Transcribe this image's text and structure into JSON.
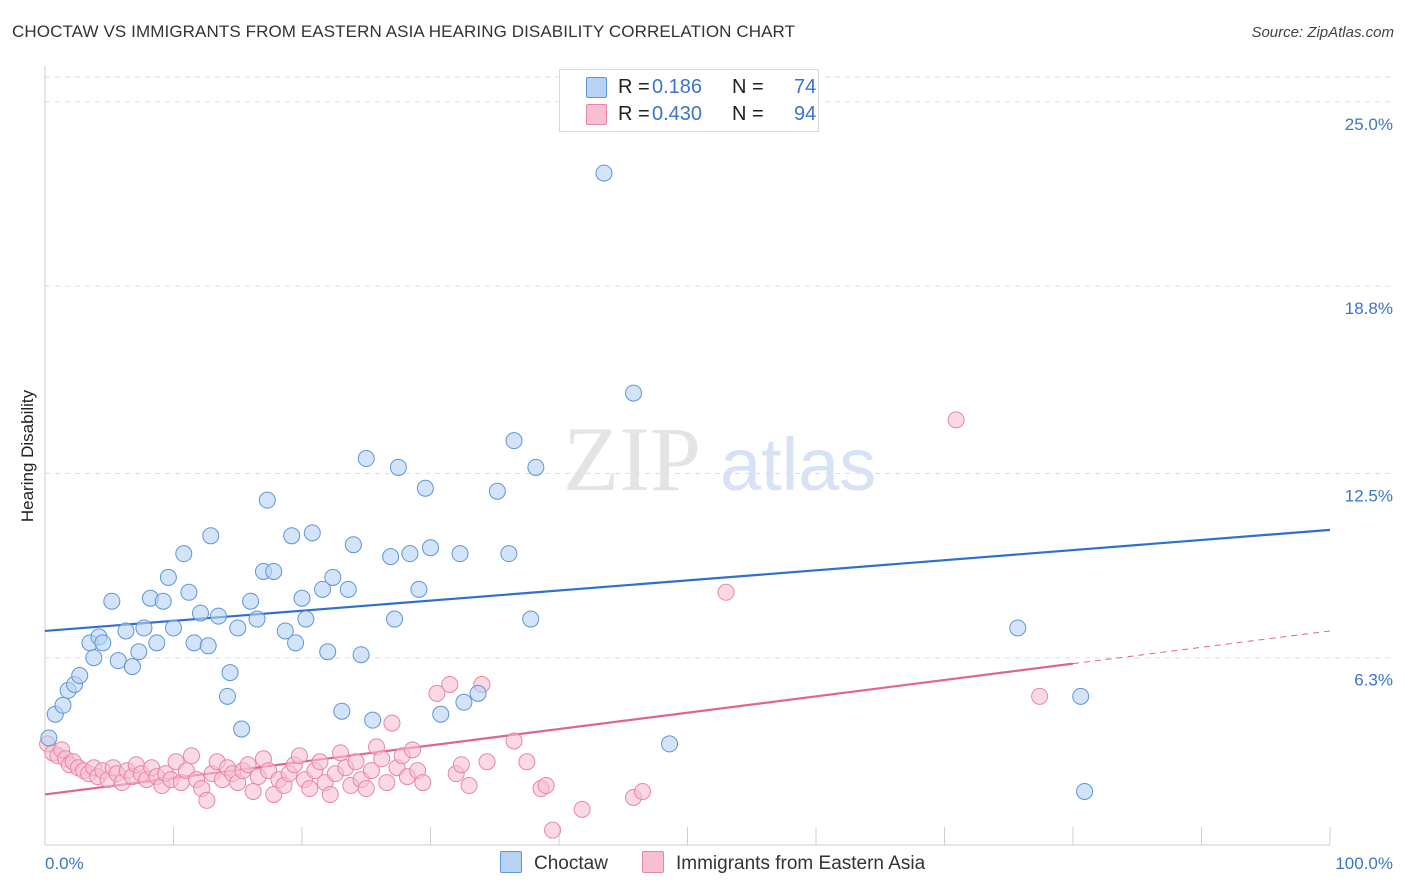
{
  "header": {
    "title": "CHOCTAW VS IMMIGRANTS FROM EASTERN ASIA HEARING DISABILITY CORRELATION CHART",
    "source": "Source: ZipAtlas.com"
  },
  "watermark": {
    "zip": "ZIP",
    "atlas": "atlas"
  },
  "legend": {
    "items": [
      {
        "r_label": "R =",
        "r_value": "0.186",
        "n_label": "N =",
        "n_value": "74"
      },
      {
        "r_label": "R =",
        "r_value": "0.430",
        "n_label": "N =",
        "n_value": "94"
      }
    ],
    "bottom": [
      "Choctaw",
      "Immigrants from Eastern Asia"
    ]
  },
  "colors": {
    "choctaw_fill": "#b7d2f3",
    "choctaw_stroke": "#5d95d9",
    "choctaw_line": "#2f6fcf",
    "immigrants_fill": "#f7bfd1",
    "immigrants_stroke": "#e985a6",
    "immigrants_line": "#e0648f",
    "axis_text": "#3a74cc",
    "grid": "#dddddd"
  },
  "chart_data": {
    "type": "scatter",
    "title": "CHOCTAW VS IMMIGRANTS FROM EASTERN ASIA HEARING DISABILITY CORRELATION CHART",
    "xlabel": "",
    "ylabel": "Hearing Disability",
    "xlim": [
      0,
      100
    ],
    "ylim": [
      0,
      25.9
    ],
    "x_tick_labels": [
      "0.0%",
      "100.0%"
    ],
    "y_ticks": [
      {
        "value": 6.3,
        "label": "6.3%"
      },
      {
        "value": 12.5,
        "label": "12.5%"
      },
      {
        "value": 18.8,
        "label": "18.8%"
      },
      {
        "value": 25.0,
        "label": "25.0%"
      }
    ],
    "series": [
      {
        "name": "Choctaw",
        "r": 0.186,
        "n": 74,
        "trend": {
          "x": [
            0,
            100
          ],
          "y": [
            7.2,
            10.6
          ]
        },
        "points": [
          [
            0.3,
            3.6
          ],
          [
            0.8,
            4.4
          ],
          [
            1.4,
            4.7
          ],
          [
            1.8,
            5.2
          ],
          [
            2.3,
            5.4
          ],
          [
            2.7,
            5.7
          ],
          [
            3.5,
            6.8
          ],
          [
            3.8,
            6.3
          ],
          [
            4.2,
            7.0
          ],
          [
            4.5,
            6.8
          ],
          [
            5.2,
            8.2
          ],
          [
            5.7,
            6.2
          ],
          [
            6.3,
            7.2
          ],
          [
            6.8,
            6.0
          ],
          [
            7.3,
            6.5
          ],
          [
            7.7,
            7.3
          ],
          [
            8.2,
            8.3
          ],
          [
            8.7,
            6.8
          ],
          [
            9.2,
            8.2
          ],
          [
            9.6,
            9.0
          ],
          [
            10.0,
            7.3
          ],
          [
            10.8,
            9.8
          ],
          [
            11.2,
            8.5
          ],
          [
            11.6,
            6.8
          ],
          [
            12.1,
            7.8
          ],
          [
            12.7,
            6.7
          ],
          [
            12.9,
            10.4
          ],
          [
            13.5,
            7.7
          ],
          [
            14.2,
            5.0
          ],
          [
            14.4,
            5.8
          ],
          [
            15.0,
            7.3
          ],
          [
            15.3,
            3.9
          ],
          [
            16.0,
            8.2
          ],
          [
            16.5,
            7.6
          ],
          [
            17.0,
            9.2
          ],
          [
            17.3,
            11.6
          ],
          [
            17.8,
            9.2
          ],
          [
            18.7,
            7.2
          ],
          [
            19.2,
            10.4
          ],
          [
            19.5,
            6.8
          ],
          [
            20.0,
            8.3
          ],
          [
            20.3,
            7.6
          ],
          [
            20.8,
            10.5
          ],
          [
            21.6,
            8.6
          ],
          [
            22.0,
            6.5
          ],
          [
            22.4,
            9.0
          ],
          [
            23.1,
            4.5
          ],
          [
            23.6,
            8.6
          ],
          [
            24.0,
            10.1
          ],
          [
            24.6,
            6.4
          ],
          [
            25.0,
            13.0
          ],
          [
            25.5,
            4.2
          ],
          [
            26.9,
            9.7
          ],
          [
            27.2,
            7.6
          ],
          [
            27.5,
            12.7
          ],
          [
            28.4,
            9.8
          ],
          [
            29.1,
            8.6
          ],
          [
            29.6,
            12.0
          ],
          [
            30.0,
            10.0
          ],
          [
            30.8,
            4.4
          ],
          [
            32.3,
            9.8
          ],
          [
            32.6,
            4.8
          ],
          [
            33.7,
            5.1
          ],
          [
            35.2,
            11.9
          ],
          [
            36.1,
            9.8
          ],
          [
            36.5,
            13.6
          ],
          [
            37.8,
            7.6
          ],
          [
            38.2,
            12.7
          ],
          [
            43.5,
            22.6
          ],
          [
            45.8,
            15.2
          ],
          [
            48.6,
            3.4
          ],
          [
            75.7,
            7.3
          ],
          [
            80.6,
            5.0
          ],
          [
            80.9,
            1.8
          ]
        ]
      },
      {
        "name": "Immigrants from Eastern Asia",
        "r": 0.43,
        "n": 94,
        "trend": {
          "x": [
            0,
            80
          ],
          "y": [
            1.7,
            6.1
          ]
        },
        "trend_ext": {
          "x": [
            80,
            100
          ],
          "y": [
            6.1,
            7.2
          ]
        },
        "points": [
          [
            0.2,
            3.4
          ],
          [
            0.6,
            3.1
          ],
          [
            1.0,
            3.0
          ],
          [
            1.3,
            3.2
          ],
          [
            1.6,
            2.9
          ],
          [
            1.9,
            2.7
          ],
          [
            2.2,
            2.8
          ],
          [
            2.6,
            2.6
          ],
          [
            3.0,
            2.5
          ],
          [
            3.4,
            2.4
          ],
          [
            3.8,
            2.6
          ],
          [
            4.1,
            2.3
          ],
          [
            4.5,
            2.5
          ],
          [
            4.9,
            2.2
          ],
          [
            5.3,
            2.6
          ],
          [
            5.6,
            2.4
          ],
          [
            6.0,
            2.1
          ],
          [
            6.4,
            2.5
          ],
          [
            6.8,
            2.3
          ],
          [
            7.1,
            2.7
          ],
          [
            7.5,
            2.4
          ],
          [
            7.9,
            2.2
          ],
          [
            8.3,
            2.6
          ],
          [
            8.7,
            2.3
          ],
          [
            9.1,
            2.0
          ],
          [
            9.4,
            2.4
          ],
          [
            9.8,
            2.2
          ],
          [
            10.2,
            2.8
          ],
          [
            10.6,
            2.1
          ],
          [
            11.0,
            2.5
          ],
          [
            11.4,
            3.0
          ],
          [
            11.8,
            2.2
          ],
          [
            12.2,
            1.9
          ],
          [
            12.6,
            1.5
          ],
          [
            13.0,
            2.4
          ],
          [
            13.4,
            2.8
          ],
          [
            13.8,
            2.2
          ],
          [
            14.2,
            2.6
          ],
          [
            14.6,
            2.4
          ],
          [
            15.0,
            2.1
          ],
          [
            15.4,
            2.5
          ],
          [
            15.8,
            2.7
          ],
          [
            16.2,
            1.8
          ],
          [
            16.6,
            2.3
          ],
          [
            17.0,
            2.9
          ],
          [
            17.4,
            2.5
          ],
          [
            17.8,
            1.7
          ],
          [
            18.2,
            2.2
          ],
          [
            18.6,
            2.0
          ],
          [
            19.0,
            2.4
          ],
          [
            19.4,
            2.7
          ],
          [
            19.8,
            3.0
          ],
          [
            20.2,
            2.2
          ],
          [
            20.6,
            1.9
          ],
          [
            21.0,
            2.5
          ],
          [
            21.4,
            2.8
          ],
          [
            21.8,
            2.1
          ],
          [
            22.2,
            1.7
          ],
          [
            22.6,
            2.4
          ],
          [
            23.0,
            3.1
          ],
          [
            23.4,
            2.6
          ],
          [
            23.8,
            2.0
          ],
          [
            24.2,
            2.8
          ],
          [
            24.6,
            2.2
          ],
          [
            25.0,
            1.9
          ],
          [
            25.4,
            2.5
          ],
          [
            25.8,
            3.3
          ],
          [
            26.2,
            2.9
          ],
          [
            26.6,
            2.1
          ],
          [
            27.0,
            4.1
          ],
          [
            27.4,
            2.6
          ],
          [
            27.8,
            3.0
          ],
          [
            28.2,
            2.3
          ],
          [
            28.6,
            3.2
          ],
          [
            29.0,
            2.5
          ],
          [
            29.4,
            2.1
          ],
          [
            30.5,
            5.1
          ],
          [
            31.5,
            5.4
          ],
          [
            32.0,
            2.4
          ],
          [
            32.4,
            2.7
          ],
          [
            33.0,
            2.0
          ],
          [
            34.0,
            5.4
          ],
          [
            34.4,
            2.8
          ],
          [
            36.5,
            3.5
          ],
          [
            37.5,
            2.8
          ],
          [
            38.6,
            1.9
          ],
          [
            39.0,
            2.0
          ],
          [
            39.5,
            0.5
          ],
          [
            41.8,
            1.2
          ],
          [
            45.8,
            1.6
          ],
          [
            46.5,
            1.8
          ],
          [
            53.0,
            8.5
          ],
          [
            70.9,
            14.3
          ],
          [
            77.4,
            5.0
          ]
        ]
      }
    ]
  }
}
